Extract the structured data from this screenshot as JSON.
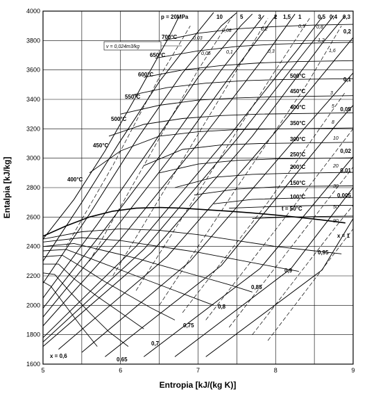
{
  "chart_data": {
    "type": "line",
    "title": "",
    "xlabel": "Entropia [kJ/(kg K)]",
    "ylabel": "Entalpia [kJ/kg]",
    "xlim": [
      5,
      9
    ],
    "ylim": [
      1600,
      4000
    ],
    "grid": true,
    "x_ticks": [
      5,
      6,
      7,
      8,
      9
    ],
    "y_ticks": [
      1600,
      1800,
      2000,
      2200,
      2400,
      2600,
      2800,
      3000,
      3200,
      3400,
      3600,
      3800,
      4000
    ],
    "pressure_header": [
      "p = 20MPa",
      "10",
      "5",
      "3",
      "2",
      "1,5",
      "1",
      "0,5",
      "0,4",
      "0,3"
    ],
    "pressure_right": [
      "0,2",
      "0,1",
      "0,05",
      "0,02",
      "0,01",
      "0,005"
    ],
    "volume_labels": [
      "0,03",
      "0,08",
      "0,2",
      "0,5",
      "0,8",
      "1,2",
      "1,6",
      "3",
      "5",
      "8",
      "10",
      "20",
      "30",
      "50",
      "90",
      "0,05",
      "0,1",
      "0,3"
    ],
    "volume_callout": "v = 0,024m3/kg",
    "temperature_labels": [
      "700°C",
      "650°C",
      "600°C",
      "550°C",
      "500°C",
      "450°C",
      "400°C",
      "500°C",
      "450°C",
      "400°C",
      "350°C",
      "300°C",
      "250°C",
      "200°C",
      "150°C",
      "100°C",
      "t = 50°C"
    ],
    "quality_labels": [
      "x = 1",
      "0,95",
      "0,9",
      "0,85",
      "0,8",
      "0,75",
      "0,7",
      "0,65",
      "x = 0,6"
    ],
    "saturation_line": {
      "name": "x = 1",
      "x": [
        5.0,
        5.3,
        5.6,
        5.9,
        6.2,
        6.5,
        6.8,
        7.1,
        7.4,
        7.7,
        8.0,
        8.3,
        8.6,
        8.9
      ],
      "y": [
        2470,
        2540,
        2600,
        2640,
        2660,
        2665,
        2660,
        2650,
        2640,
        2628,
        2614,
        2598,
        2580,
        2560
      ]
    },
    "quality_lines": [
      {
        "name": "0,95",
        "x": [
          5.0,
          5.5,
          6.0,
          6.5,
          7.0,
          7.5,
          8.0,
          8.5,
          8.85
        ],
        "y": [
          2450,
          2500,
          2520,
          2510,
          2480,
          2440,
          2400,
          2370,
          2350
        ]
      },
      {
        "name": "0,9",
        "x": [
          5.0,
          5.5,
          6.0,
          6.5,
          7.0,
          7.5,
          8.0,
          8.3
        ],
        "y": [
          2430,
          2460,
          2440,
          2400,
          2360,
          2310,
          2260,
          2230
        ]
      },
      {
        "name": "0,85",
        "x": [
          5.0,
          5.4,
          5.8,
          6.2,
          6.6,
          7.0,
          7.4,
          7.7
        ],
        "y": [
          2400,
          2420,
          2370,
          2320,
          2260,
          2200,
          2140,
          2090
        ]
      },
      {
        "name": "0,8",
        "x": [
          5.0,
          5.3,
          5.6,
          6.0,
          6.4,
          6.8,
          7.2
        ],
        "y": [
          2370,
          2380,
          2320,
          2240,
          2160,
          2080,
          2000
        ]
      },
      {
        "name": "0,75",
        "x": [
          5.0,
          5.25,
          5.5,
          5.8,
          6.1,
          6.4,
          6.7
        ],
        "y": [
          2330,
          2340,
          2260,
          2160,
          2070,
          1980,
          1900
        ]
      },
      {
        "name": "0,7",
        "x": [
          5.0,
          5.2,
          5.4,
          5.7,
          6.0,
          6.3
        ],
        "y": [
          2280,
          2280,
          2180,
          2060,
          1950,
          1840
        ]
      },
      {
        "name": "0,65",
        "x": [
          5.0,
          5.15,
          5.35,
          5.6,
          5.85,
          6.1
        ],
        "y": [
          2220,
          2210,
          2090,
          1950,
          1820,
          1720
        ]
      },
      {
        "name": "x = 0,6",
        "x": [
          5.0,
          5.1,
          5.3,
          5.5,
          5.7
        ],
        "y": [
          2160,
          2130,
          1990,
          1850,
          1720
        ]
      }
    ],
    "isobars": [
      {
        "name": "p = 20MPa",
        "x": [
          5.0,
          5.4,
          5.8,
          6.2,
          6.6,
          6.75
        ],
        "y": [
          2450,
          2720,
          3050,
          3420,
          3800,
          3960
        ]
      },
      {
        "name": "10",
        "x": [
          5.0,
          5.5,
          6.0,
          6.5,
          7.0,
          7.2
        ],
        "y": [
          2300,
          2700,
          3120,
          3520,
          3860,
          3990
        ]
      },
      {
        "name": "5",
        "x": [
          5.0,
          5.6,
          6.2,
          6.8,
          7.3,
          7.5
        ],
        "y": [
          2150,
          2620,
          3120,
          3580,
          3900,
          3990
        ]
      },
      {
        "name": "3",
        "x": [
          5.0,
          5.7,
          6.4,
          7.0,
          7.55,
          7.7
        ],
        "y": [
          2050,
          2550,
          3080,
          3550,
          3900,
          3980
        ]
      },
      {
        "name": "2",
        "x": [
          5.0,
          5.8,
          6.6,
          7.3,
          7.85
        ],
        "y": [
          1980,
          2520,
          3080,
          3600,
          3970
        ]
      },
      {
        "name": "1,5",
        "x": [
          5.0,
          5.9,
          6.8,
          7.5,
          8.0
        ],
        "y": [
          1920,
          2500,
          3110,
          3620,
          3970
        ]
      },
      {
        "name": "1",
        "x": [
          5.0,
          6.0,
          7.0,
          7.8,
          8.25
        ],
        "y": [
          1860,
          2450,
          3100,
          3650,
          3980
        ]
      },
      {
        "name": "0,5",
        "x": [
          5.0,
          6.2,
          7.4,
          8.3,
          8.6
        ],
        "y": [
          1780,
          2400,
          3150,
          3750,
          3960
        ]
      },
      {
        "name": "0,4",
        "x": [
          5.0,
          6.3,
          7.5,
          8.4,
          8.75
        ],
        "y": [
          1750,
          2380,
          3130,
          3740,
          3970
        ]
      },
      {
        "name": "0,3",
        "x": [
          5.0,
          6.4,
          7.7,
          8.6,
          8.9
        ],
        "y": [
          1720,
          2360,
          3150,
          3780,
          3970
        ]
      },
      {
        "name": "0,2",
        "x": [
          5.2,
          6.6,
          8.0,
          9.0
        ],
        "y": [
          1700,
          2330,
          3180,
          3820
        ]
      },
      {
        "name": "0,1",
        "x": [
          5.5,
          6.9,
          8.4,
          9.0
        ],
        "y": [
          1680,
          2300,
          3220,
          3580
        ]
      },
      {
        "name": "0,05",
        "x": [
          5.8,
          7.3,
          8.8,
          9.0
        ],
        "y": [
          1650,
          2270,
          3240,
          3360
        ]
      },
      {
        "name": "0,02",
        "x": [
          6.3,
          7.8,
          9.0
        ],
        "y": [
          1650,
          2250,
          3010
        ]
      },
      {
        "name": "0,01",
        "x": [
          6.7,
          8.2,
          9.0
        ],
        "y": [
          1650,
          2250,
          2800
        ]
      },
      {
        "name": "0,005",
        "x": [
          7.1,
          8.6,
          9.0
        ],
        "y": [
          1650,
          2240,
          2590
        ]
      }
    ],
    "isotherms": [
      {
        "name": "700°C",
        "x": [
          6.55,
          7.0,
          7.5,
          8.0,
          8.5,
          9.0
        ],
        "y": [
          3800,
          3850,
          3880,
          3895,
          3905,
          3910
        ]
      },
      {
        "name": "650°C",
        "x": [
          6.45,
          7.0,
          7.5,
          8.0,
          8.5,
          9.0
        ],
        "y": [
          3680,
          3730,
          3760,
          3775,
          3783,
          3788
        ]
      },
      {
        "name": "600°C",
        "x": [
          6.3,
          6.8,
          7.3,
          7.8,
          8.3,
          9.0
        ],
        "y": [
          3550,
          3600,
          3630,
          3648,
          3657,
          3663
        ]
      },
      {
        "name": "550°C",
        "x": [
          6.15,
          6.6,
          7.1,
          7.6,
          8.1,
          9.0
        ],
        "y": [
          3430,
          3480,
          3510,
          3527,
          3535,
          3541
        ]
      },
      {
        "name": "500°C",
        "x": [
          6.0,
          6.5,
          7.0,
          7.5,
          8.0,
          9.0
        ],
        "y": [
          3300,
          3360,
          3395,
          3410,
          3418,
          3425
        ]
      },
      {
        "name": "450°C",
        "x": [
          5.85,
          6.3,
          6.8,
          7.3,
          7.8,
          9.0
        ],
        "y": [
          3150,
          3230,
          3270,
          3290,
          3300,
          3309
        ]
      },
      {
        "name": "400°C",
        "x": [
          5.6,
          6.0,
          6.5,
          7.0,
          7.5,
          9.0
        ],
        "y": [
          2900,
          3050,
          3150,
          3180,
          3195,
          3206
        ]
      },
      {
        "name": "350°C",
        "x": [
          6.3,
          6.8,
          7.3,
          7.8,
          9.0
        ],
        "y": [
          2950,
          3060,
          3090,
          3100,
          3108
        ]
      },
      {
        "name": "300°C",
        "x": [
          6.5,
          7.0,
          7.5,
          8.0,
          9.0
        ],
        "y": [
          2900,
          2960,
          2985,
          2995,
          3002
        ]
      },
      {
        "name": "250°C",
        "x": [
          6.7,
          7.2,
          7.7,
          8.2,
          9.0
        ],
        "y": [
          2800,
          2870,
          2890,
          2898,
          2904
        ]
      },
      {
        "name": "200°C",
        "x": [
          6.95,
          7.5,
          8.0,
          8.5,
          9.0
        ],
        "y": [
          2750,
          2790,
          2805,
          2810,
          2812
        ]
      },
      {
        "name": "150°C",
        "x": [
          7.2,
          7.7,
          8.2,
          8.7,
          9.0
        ],
        "y": [
          2690,
          2720,
          2728,
          2732,
          2733
        ]
      },
      {
        "name": "100°C",
        "x": [
          7.4,
          7.9,
          8.4,
          9.0
        ],
        "y": [
          2660,
          2670,
          2677,
          2680
        ]
      },
      {
        "name": "t = 50°C",
        "x": [
          7.7,
          8.2,
          8.7,
          9.0
        ],
        "y": [
          2590,
          2600,
          2605,
          2607
        ]
      }
    ],
    "isochores": [
      {
        "name": "0,03",
        "x": [
          5.3,
          5.9,
          6.5,
          6.9
        ],
        "y": [
          2400,
          2950,
          3550,
          3900
        ]
      },
      {
        "name": "0,08",
        "x": [
          5.6,
          6.3,
          7.0,
          7.45
        ],
        "y": [
          2300,
          2950,
          3600,
          3970
        ]
      },
      {
        "name": "0,2",
        "x": [
          5.9,
          6.7,
          7.5,
          7.9
        ],
        "y": [
          2200,
          2900,
          3600,
          3950
        ]
      },
      {
        "name": "0,5",
        "x": [
          6.2,
          7.1,
          8.0,
          8.45
        ],
        "y": [
          2100,
          2850,
          3600,
          3960
        ]
      },
      {
        "name": "1,2",
        "x": [
          6.5,
          7.5,
          8.4,
          8.85
        ],
        "y": [
          2000,
          2800,
          3500,
          3900
        ]
      },
      {
        "name": "3",
        "x": [
          6.8,
          7.9,
          8.9
        ],
        "y": [
          1950,
          2700,
          3450
        ]
      },
      {
        "name": "8",
        "x": [
          7.1,
          8.2,
          9.0
        ],
        "y": [
          1900,
          2650,
          3200
        ]
      },
      {
        "name": "20",
        "x": [
          7.4,
          8.5,
          9.0
        ],
        "y": [
          1850,
          2600,
          2940
        ]
      },
      {
        "name": "50",
        "x": [
          7.7,
          8.8,
          9.0
        ],
        "y": [
          1800,
          2550,
          2680
        ]
      },
      {
        "name": "90",
        "x": [
          7.9,
          9.0
        ],
        "y": [
          1760,
          2520
        ]
      }
    ]
  }
}
